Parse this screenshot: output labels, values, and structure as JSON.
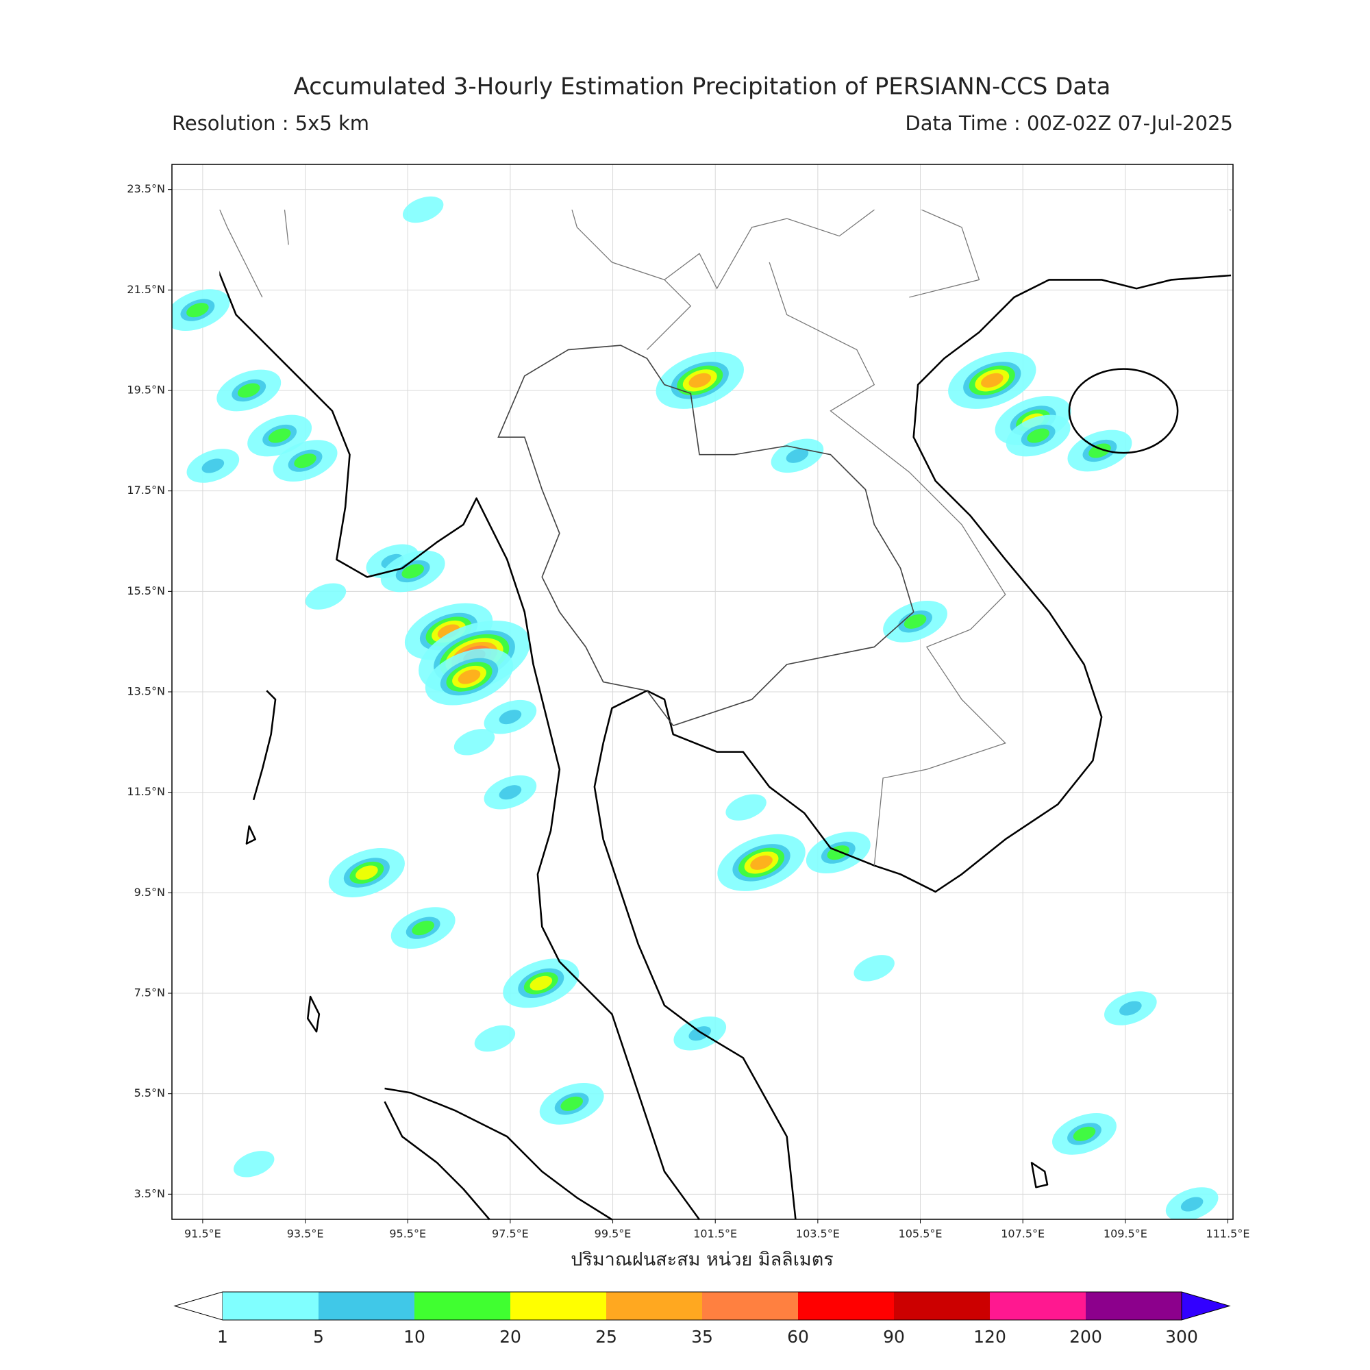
{
  "title": "Accumulated 3-Hourly Estimation Precipitation of PERSIANN-CCS Data",
  "resolution": "Resolution : 5x5 km",
  "data_time": "Data Time : 00Z-02Z 07-Jul-2025",
  "map": {
    "xlim": [
      90.9,
      111.6
    ],
    "ylim": [
      3,
      24
    ],
    "xticks": [
      {
        "value": 91.5,
        "label": "91.5°E"
      },
      {
        "value": 93.5,
        "label": "93.5°E"
      },
      {
        "value": 95.5,
        "label": "95.5°E"
      },
      {
        "value": 97.5,
        "label": "97.5°E"
      },
      {
        "value": 99.5,
        "label": "99.5°E"
      },
      {
        "value": 101.5,
        "label": "101.5°E"
      },
      {
        "value": 103.5,
        "label": "103.5°E"
      },
      {
        "value": 105.5,
        "label": "105.5°E"
      },
      {
        "value": 107.5,
        "label": "107.5°E"
      },
      {
        "value": 109.5,
        "label": "109.5°E"
      },
      {
        "value": 111.5,
        "label": "111.5°E"
      }
    ],
    "yticks": [
      {
        "value": 3.5,
        "label": "3.5°N"
      },
      {
        "value": 5.5,
        "label": "5.5°N"
      },
      {
        "value": 7.5,
        "label": "7.5°N"
      },
      {
        "value": 9.5,
        "label": "9.5°N"
      },
      {
        "value": 11.5,
        "label": "11.5°N"
      },
      {
        "value": 13.5,
        "label": "13.5°N"
      },
      {
        "value": 15.5,
        "label": "15.5°N"
      },
      {
        "value": 17.5,
        "label": "17.5°N"
      },
      {
        "value": 19.5,
        "label": "19.5°N"
      },
      {
        "value": 21.5,
        "label": "21.5°N"
      },
      {
        "value": 23.5,
        "label": "23.5°N"
      }
    ],
    "grid": true,
    "rain_cells": [
      {
        "lon": 91.4,
        "lat": 21.1,
        "value": 12
      },
      {
        "lon": 92.4,
        "lat": 19.5,
        "value": 12
      },
      {
        "lon": 91.7,
        "lat": 18.0,
        "value": 7
      },
      {
        "lon": 93.5,
        "lat": 18.1,
        "value": 12
      },
      {
        "lon": 93.0,
        "lat": 18.6,
        "value": 12
      },
      {
        "lon": 95.2,
        "lat": 16.1,
        "value": 8
      },
      {
        "lon": 95.6,
        "lat": 15.9,
        "value": 15
      },
      {
        "lon": 96.3,
        "lat": 14.7,
        "value": 30
      },
      {
        "lon": 96.8,
        "lat": 14.2,
        "value": 65
      },
      {
        "lon": 96.7,
        "lat": 13.8,
        "value": 30
      },
      {
        "lon": 93.9,
        "lat": 15.4,
        "value": 3
      },
      {
        "lon": 97.5,
        "lat": 13.0,
        "value": 7
      },
      {
        "lon": 96.8,
        "lat": 12.5,
        "value": 3
      },
      {
        "lon": 97.5,
        "lat": 11.5,
        "value": 7
      },
      {
        "lon": 94.7,
        "lat": 9.9,
        "value": 22
      },
      {
        "lon": 95.8,
        "lat": 8.8,
        "value": 15
      },
      {
        "lon": 98.1,
        "lat": 7.7,
        "value": 22
      },
      {
        "lon": 97.2,
        "lat": 6.6,
        "value": 3
      },
      {
        "lon": 98.7,
        "lat": 5.3,
        "value": 12
      },
      {
        "lon": 102.1,
        "lat": 11.2,
        "value": 3
      },
      {
        "lon": 102.4,
        "lat": 10.1,
        "value": 25
      },
      {
        "lon": 103.9,
        "lat": 10.3,
        "value": 12
      },
      {
        "lon": 105.4,
        "lat": 14.9,
        "value": 15
      },
      {
        "lon": 104.6,
        "lat": 8.0,
        "value": 3
      },
      {
        "lon": 107.7,
        "lat": 18.9,
        "value": 22
      },
      {
        "lon": 107.8,
        "lat": 18.6,
        "value": 15
      },
      {
        "lon": 106.9,
        "lat": 19.7,
        "value": 25
      },
      {
        "lon": 109.0,
        "lat": 18.3,
        "value": 12
      },
      {
        "lon": 109.6,
        "lat": 7.2,
        "value": 7
      },
      {
        "lon": 110.8,
        "lat": 3.3,
        "value": 7
      },
      {
        "lon": 101.2,
        "lat": 6.7,
        "value": 7
      },
      {
        "lon": 101.2,
        "lat": 19.7,
        "value": 25
      },
      {
        "lon": 103.1,
        "lat": 18.2,
        "value": 7
      },
      {
        "lon": 95.8,
        "lat": 23.1,
        "value": 3
      },
      {
        "lon": 92.5,
        "lat": 4.1,
        "value": 3
      },
      {
        "lon": 108.7,
        "lat": 4.7,
        "value": 15
      }
    ]
  },
  "axis_label": "ปริมาณฝนสะสม หน่วย มิลลิเมตร",
  "colorbar": {
    "levels": [
      1,
      5,
      10,
      20,
      25,
      35,
      60,
      90,
      120,
      200,
      300
    ],
    "colors": [
      "#80ffff",
      "#40c8e8",
      "#40ff30",
      "#ffff00",
      "#ffa820",
      "#ff8040",
      "#ff0000",
      "#cc0000",
      "#ff1890",
      "#8c008c"
    ],
    "under_color": "#ffffff",
    "over_color": "#3200ff"
  }
}
